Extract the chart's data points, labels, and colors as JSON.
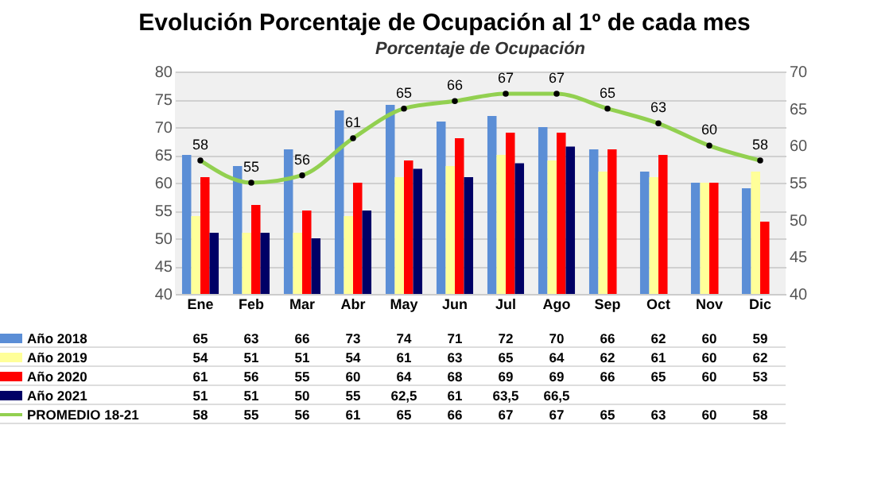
{
  "chart_data": {
    "type": "bar",
    "title": "Evolución Porcentaje de Ocupación al 1º de cada mes",
    "subtitle": "Porcentaje de Ocupación",
    "categories": [
      "Ene",
      "Feb",
      "Mar",
      "Abr",
      "May",
      "Jun",
      "Jul",
      "Ago",
      "Sep",
      "Oct",
      "Nov",
      "Dic"
    ],
    "series": [
      {
        "name": "Año 2018",
        "color": "#5b8ed6",
        "values": [
          65,
          63,
          66,
          73,
          74,
          71,
          72,
          70,
          66,
          62,
          60,
          59
        ],
        "value_labels": [
          "65",
          "63",
          "66",
          "73",
          "74",
          "71",
          "72",
          "70",
          "66",
          "62",
          "60",
          "59"
        ]
      },
      {
        "name": "Año 2019",
        "color": "#ffff99",
        "values": [
          54,
          51,
          51,
          54,
          61,
          63,
          65,
          64,
          62,
          61,
          60,
          62
        ],
        "value_labels": [
          "54",
          "51",
          "51",
          "54",
          "61",
          "63",
          "65",
          "64",
          "62",
          "61",
          "60",
          "62"
        ]
      },
      {
        "name": "Año 2020",
        "color": "#ff0000",
        "values": [
          61,
          56,
          55,
          60,
          64,
          68,
          69,
          69,
          66,
          65,
          60,
          53
        ],
        "value_labels": [
          "61",
          "56",
          "55",
          "60",
          "64",
          "68",
          "69",
          "69",
          "66",
          "65",
          "60",
          "53"
        ]
      },
      {
        "name": "Año 2021",
        "color": "#000066",
        "values": [
          51,
          51,
          50,
          55,
          62.5,
          61,
          63.5,
          66.5,
          null,
          null,
          null,
          null
        ],
        "value_labels": [
          "51",
          "51",
          "50",
          "55",
          "62,5",
          "61",
          "63,5",
          "66,5",
          null,
          null,
          null,
          null
        ]
      },
      {
        "name": "PROMEDIO 18-21",
        "type": "line",
        "axis": "y2",
        "color": "#92d050",
        "values": [
          58,
          55,
          56,
          61,
          65,
          66,
          67,
          67,
          65,
          63,
          60,
          58
        ],
        "value_labels": [
          "58",
          "55",
          "56",
          "61",
          "65",
          "66",
          "67",
          "67",
          "65",
          "63",
          "60",
          "58"
        ]
      }
    ],
    "ylim": [
      40,
      80
    ],
    "yticks": [
      40,
      45,
      50,
      55,
      60,
      65,
      70,
      75,
      80
    ],
    "y2lim": [
      40,
      70
    ],
    "y2ticks": [
      40,
      45,
      50,
      55,
      60,
      65,
      70
    ],
    "grid": "y",
    "legend": "bottom",
    "marker": "circle"
  }
}
